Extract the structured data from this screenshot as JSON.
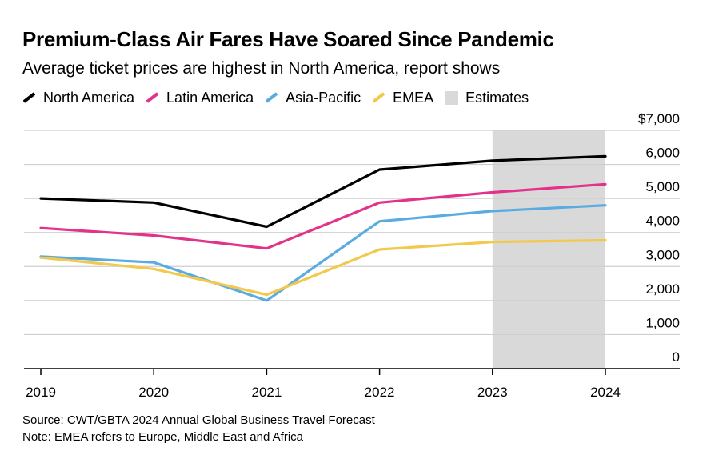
{
  "title": "Premium-Class Air Fares Have Soared Since Pandemic",
  "subtitle": "Average ticket prices are highest in North America, report shows",
  "legend": [
    {
      "label": "North America",
      "color": "#000000",
      "kind": "line"
    },
    {
      "label": "Latin America",
      "color": "#e2338b",
      "kind": "line"
    },
    {
      "label": "Asia-Pacific",
      "color": "#5aace0",
      "kind": "line"
    },
    {
      "label": "EMEA",
      "color": "#f2c94c",
      "kind": "line"
    },
    {
      "label": "Estimates",
      "color": "#d9d9d9",
      "kind": "box"
    }
  ],
  "chart_data": {
    "type": "line",
    "title": "Premium-Class Air Fares Have Soared Since Pandemic",
    "subtitle": "Average ticket prices are highest in North America, report shows",
    "xlabel": "",
    "ylabel": "",
    "x": [
      "2019",
      "2020",
      "2021",
      "2022",
      "2023",
      "2024"
    ],
    "ylim": [
      0,
      7000
    ],
    "yticks": [
      0,
      1000,
      2000,
      3000,
      4000,
      5000,
      6000,
      7000
    ],
    "ytick_labels": [
      "0",
      "1,000",
      "2,000",
      "3,000",
      "4,000",
      "5,000",
      "6,000",
      "$7,000"
    ],
    "grid": true,
    "legend_position": "top-left",
    "shaded_region": {
      "label": "Estimates",
      "from": "2023",
      "to": "2024",
      "color": "#d9d9d9"
    },
    "series": [
      {
        "name": "North America",
        "color": "#000000",
        "values": [
          5000,
          4880,
          4170,
          5850,
          6110,
          6240
        ]
      },
      {
        "name": "Latin America",
        "color": "#e2338b",
        "values": [
          4130,
          3910,
          3530,
          4880,
          5180,
          5420
        ]
      },
      {
        "name": "Asia-Pacific",
        "color": "#5aace0",
        "values": [
          3290,
          3120,
          2000,
          4330,
          4630,
          4800
        ]
      },
      {
        "name": "EMEA",
        "color": "#f2c94c",
        "values": [
          3260,
          2930,
          2170,
          3500,
          3720,
          3770
        ]
      }
    ]
  },
  "footer": {
    "source": "Source: CWT/GBTA 2024 Annual Global Business Travel Forecast",
    "note": "Note: EMEA refers to Europe, Middle East and Africa"
  }
}
